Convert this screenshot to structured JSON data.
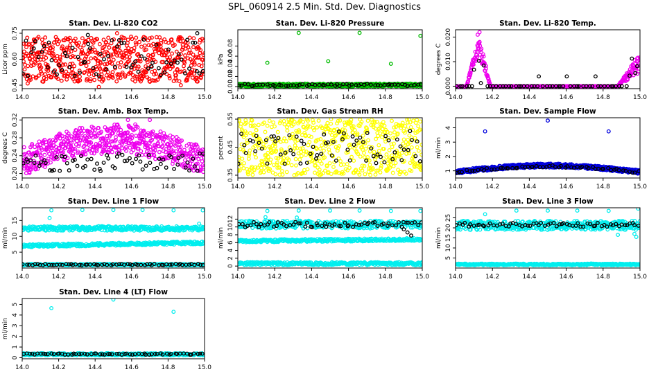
{
  "figure": {
    "title": "SPL_060914  2.5 Min. Std. Dev. Diagnostics"
  },
  "chart_data": [
    {
      "id": "co2",
      "type": "scatter",
      "title": "Stan. Dev. Li-820 CO2",
      "ylabel": "Licor ppm",
      "xlim": [
        14.0,
        15.0
      ],
      "ylim": [
        0.43,
        0.77
      ],
      "xticks": [
        "14.0",
        "14.2",
        "14.4",
        "14.6",
        "14.8",
        "15.0"
      ],
      "yticks": [
        0.45,
        0.6,
        0.75
      ],
      "ytick_labels": [
        "0.45",
        "0.60",
        "0.75"
      ],
      "series": [
        {
          "name": "run",
          "color": "#ff0000",
          "model": "uniform",
          "n": 600,
          "lo": 0.47,
          "hi": 0.73,
          "seed": 11,
          "points": [
            [
              14.03,
              0.46
            ],
            [
              14.42,
              0.44
            ],
            [
              14.87,
              0.45
            ],
            [
              14.52,
              0.75
            ]
          ]
        },
        {
          "name": "cal",
          "color": "#000000",
          "model": "uniform",
          "n": 70,
          "lo": 0.5,
          "hi": 0.72,
          "seed": 12,
          "points": [
            [
              14.36,
              0.74
            ],
            [
              14.96,
              0.75
            ]
          ]
        }
      ]
    },
    {
      "id": "pressure",
      "type": "scatter",
      "title": "Stan. Dev. Li-820 Pressure",
      "ylabel": "kPa",
      "xlim": [
        14.0,
        15.0
      ],
      "ylim": [
        -0.004,
        0.112
      ],
      "xticks": [
        "14.0",
        "14.2",
        "14.4",
        "14.6",
        "14.8",
        "15.0"
      ],
      "yticks": [
        0.0,
        0.02,
        0.04,
        0.06,
        0.08
      ],
      "ytick_labels": [
        "0.00",
        "0.02",
        "0.04",
        "0.06",
        "0.08"
      ],
      "series": [
        {
          "name": "run",
          "color": "#00bb00",
          "model": "uniform",
          "n": 550,
          "lo": 0.0,
          "hi": 0.006,
          "seed": 21,
          "points": [
            [
              14.33,
              0.106
            ],
            [
              14.66,
              0.106
            ],
            [
              14.99,
              0.1
            ],
            [
              14.16,
              0.047
            ],
            [
              14.49,
              0.05
            ],
            [
              14.83,
              0.045
            ]
          ]
        },
        {
          "name": "cal",
          "color": "#000000",
          "model": "uniform",
          "n": 60,
          "lo": 0.001,
          "hi": 0.006,
          "seed": 22,
          "points": []
        }
      ]
    },
    {
      "id": "temp",
      "type": "scatter",
      "title": "Stan. Dev. Li-820 Temp.",
      "ylabel": "degrees C",
      "xlim": [
        14.0,
        15.0
      ],
      "ylim": [
        -0.001,
        0.023
      ],
      "xticks": [
        "14.0",
        "14.2",
        "14.4",
        "14.6",
        "14.8",
        "15.0"
      ],
      "yticks": [
        0.0,
        0.01,
        0.02
      ],
      "ytick_labels": [
        "0.000",
        "0.010",
        "0.020"
      ],
      "series": [
        {
          "name": "run",
          "color": "#ee00ee",
          "model": "temp",
          "n": 600,
          "seed": 31,
          "points": [
            [
              14.13,
              0.022
            ],
            [
              14.12,
              0.021
            ]
          ]
        },
        {
          "name": "cal",
          "color": "#000000",
          "model": "tempcal",
          "n": 60,
          "seed": 32,
          "points": []
        }
      ]
    },
    {
      "id": "boxtemp",
      "type": "scatter",
      "title": "Stan. Dev. Amb. Box Temp.",
      "ylabel": "degrees C",
      "xlim": [
        14.0,
        15.0
      ],
      "ylim": [
        0.19,
        0.325
      ],
      "xticks": [
        "14.0",
        "14.2",
        "14.4",
        "14.6",
        "14.8",
        "15.0"
      ],
      "yticks": [
        0.2,
        0.24,
        0.28,
        0.32
      ],
      "ytick_labels": [
        "0.20",
        "0.24",
        "0.28",
        "0.32"
      ],
      "series": [
        {
          "name": "run",
          "color": "#ee00ee",
          "model": "hump",
          "n": 600,
          "base_lo": 0.195,
          "base_hi": 0.26,
          "peak": 0.05,
          "seed": 41,
          "points": [
            [
              14.58,
              0.32
            ],
            [
              14.7,
              0.32
            ],
            [
              14.62,
              0.31
            ]
          ]
        },
        {
          "name": "cal",
          "color": "#000000",
          "model": "uniform",
          "n": 70,
          "lo": 0.205,
          "hi": 0.245,
          "seed": 42,
          "points": []
        }
      ]
    },
    {
      "id": "rh",
      "type": "scatter",
      "title": "Stan. Dev. Gas Stream RH",
      "ylabel": "percent",
      "xlim": [
        14.0,
        15.0
      ],
      "ylim": [
        0.34,
        0.555
      ],
      "xticks": [
        "14.0",
        "14.2",
        "14.4",
        "14.6",
        "14.8",
        "15.0"
      ],
      "yticks": [
        0.35,
        0.45,
        0.55
      ],
      "ytick_labels": [
        "0.35",
        "0.45",
        "0.55"
      ],
      "series": [
        {
          "name": "run",
          "color": "#ffff00",
          "model": "uniform",
          "n": 600,
          "lo": 0.35,
          "hi": 0.55,
          "seed": 51,
          "points": []
        },
        {
          "name": "cal",
          "color": "#000000",
          "model": "uniform",
          "n": 70,
          "lo": 0.39,
          "hi": 0.52,
          "seed": 52,
          "points": []
        }
      ]
    },
    {
      "id": "sampleflow",
      "type": "scatter",
      "title": "Stan. Dev. Sample Flow",
      "ylabel": "ml/min",
      "xlim": [
        14.0,
        15.0
      ],
      "ylim": [
        0.5,
        4.7
      ],
      "xticks": [
        "14.0",
        "14.2",
        "14.4",
        "14.6",
        "14.8",
        "15.0"
      ],
      "yticks": [
        1,
        2,
        3,
        4
      ],
      "ytick_labels": [
        "1",
        "2",
        "3",
        "4"
      ],
      "series": [
        {
          "name": "run",
          "color": "#0000dd",
          "model": "hump",
          "n": 600,
          "base_lo": 0.78,
          "base_hi": 1.05,
          "peak": 0.45,
          "seed": 61,
          "points": [
            [
              14.16,
              3.75
            ],
            [
              14.5,
              4.5
            ],
            [
              14.83,
              3.75
            ],
            [
              14.03,
              1.05
            ],
            [
              14.93,
              1.1
            ]
          ]
        },
        {
          "name": "cal",
          "color": "#000000",
          "model": "hump",
          "n": 60,
          "base_lo": 0.82,
          "base_hi": 0.98,
          "peak": 0.42,
          "seed": 62,
          "points": []
        }
      ]
    },
    {
      "id": "line1",
      "type": "scatter",
      "title": "Stan. Dev. Line 1 Flow",
      "ylabel": "ml/min",
      "xlim": [
        14.0,
        15.0
      ],
      "ylim": [
        0.0,
        19.0
      ],
      "xticks": [
        "14.0",
        "14.2",
        "14.4",
        "14.6",
        "14.8",
        "15.0"
      ],
      "yticks": [
        5,
        10,
        15
      ],
      "ytick_labels": [
        "5",
        "10",
        "15"
      ],
      "series": [
        {
          "name": "upper",
          "color": "#00eeee",
          "model": "uniform",
          "n": 350,
          "lo": 11.8,
          "hi": 13.2,
          "seed": 71,
          "points": [
            [
              14.16,
              18.2
            ],
            [
              14.33,
              18.3
            ],
            [
              14.5,
              18.3
            ],
            [
              14.66,
              18.3
            ],
            [
              14.83,
              18.2
            ],
            [
              14.99,
              18.2
            ],
            [
              14.15,
              15.8
            ],
            [
              14.97,
              14.0
            ]
          ]
        },
        {
          "name": "middle",
          "color": "#00eeee",
          "model": "linear",
          "n": 350,
          "a": 7.0,
          "b": 8.0,
          "jit": 0.9,
          "seed": 72,
          "points": []
        },
        {
          "name": "lower",
          "color": "#00eeee",
          "model": "uniform",
          "n": 300,
          "lo": 0.8,
          "hi": 1.3,
          "seed": 73,
          "points": []
        },
        {
          "name": "cal",
          "color": "#000000",
          "model": "uniform",
          "n": 65,
          "lo": 0.85,
          "hi": 1.3,
          "seed": 74,
          "points": []
        }
      ]
    },
    {
      "id": "line2",
      "type": "scatter",
      "title": "Stan. Dev. Line 2 Flow",
      "ylabel": "ml/min",
      "xlim": [
        14.0,
        15.0
      ],
      "ylim": [
        -0.5,
        14.9
      ],
      "xticks": [
        "14.0",
        "14.2",
        "14.4",
        "14.6",
        "14.8",
        "15.0"
      ],
      "yticks": [
        0,
        2,
        4,
        6,
        8,
        10,
        12
      ],
      "ytick_labels": [
        "0",
        "2",
        "4",
        "6",
        "8",
        "10",
        "12"
      ],
      "series": [
        {
          "name": "upper",
          "color": "#00eeee",
          "model": "uniform",
          "n": 330,
          "lo": 9.6,
          "hi": 11.6,
          "seed": 81,
          "points": [
            [
              14.16,
              14.1
            ],
            [
              14.33,
              14.2
            ],
            [
              14.5,
              14.2
            ],
            [
              14.66,
              14.2
            ],
            [
              14.83,
              14.1
            ],
            [
              14.99,
              14.1
            ],
            [
              14.15,
              12.5
            ],
            [
              14.32,
              12.4
            ]
          ]
        },
        {
          "name": "middle",
          "color": "#00eeee",
          "model": "linear",
          "n": 330,
          "a": 6.4,
          "b": 6.8,
          "jit": 0.7,
          "seed": 82,
          "points": []
        },
        {
          "name": "lower",
          "color": "#00eeee",
          "model": "uniform",
          "n": 330,
          "lo": 0.25,
          "hi": 1.0,
          "seed": 83,
          "points": []
        },
        {
          "name": "cal",
          "color": "#000000",
          "model": "uniform",
          "n": 65,
          "lo": 9.9,
          "hi": 11.3,
          "seed": 84,
          "points": [
            [
              14.92,
              8.6
            ],
            [
              14.94,
              7.8
            ],
            [
              14.9,
              9.4
            ]
          ]
        }
      ]
    },
    {
      "id": "line3",
      "type": "scatter",
      "title": "Stan. Dev. Line 3 Flow",
      "ylabel": "ml/min",
      "xlim": [
        14.0,
        15.0
      ],
      "ylim": [
        0.0,
        30.0
      ],
      "xticks": [
        "14.0",
        "14.2",
        "14.4",
        "14.6",
        "14.8",
        "15.0"
      ],
      "yticks": [
        5,
        10,
        15,
        20,
        25
      ],
      "ytick_labels": [
        "5",
        "10",
        "15",
        "20",
        "25"
      ],
      "series": [
        {
          "name": "upper",
          "color": "#00eeee",
          "model": "uniform",
          "n": 400,
          "lo": 19.0,
          "hi": 23.5,
          "seed": 91,
          "points": [
            [
              14.16,
              26.8
            ],
            [
              14.33,
              28.6
            ],
            [
              14.5,
              28.6
            ],
            [
              14.66,
              28.6
            ],
            [
              14.83,
              28.5
            ],
            [
              14.99,
              29.6
            ],
            [
              14.98,
              15.5
            ],
            [
              14.97,
              17.0
            ],
            [
              14.88,
              16.5
            ]
          ]
        },
        {
          "name": "lower",
          "color": "#00eeee",
          "model": "uniform",
          "n": 400,
          "lo": 1.4,
          "hi": 2.2,
          "seed": 92,
          "points": []
        },
        {
          "name": "cal",
          "color": "#000000",
          "model": "uniform",
          "n": 65,
          "lo": 20.5,
          "hi": 22.5,
          "seed": 93,
          "points": []
        }
      ]
    },
    {
      "id": "line4",
      "type": "scatter",
      "title": "Stan. Dev. Line 4 (LT) Flow",
      "ylabel": "ml/min",
      "xlim": [
        14.0,
        15.0
      ],
      "ylim": [
        -0.1,
        5.55
      ],
      "xticks": [
        "14.0",
        "14.2",
        "14.4",
        "14.6",
        "14.8",
        "15.0"
      ],
      "yticks": [
        0,
        1,
        2,
        3,
        4,
        5
      ],
      "ytick_labels": [
        "0",
        "1",
        "2",
        "3",
        "4",
        "5"
      ],
      "series": [
        {
          "name": "run",
          "color": "#00eeee",
          "model": "uniform",
          "n": 450,
          "lo": 0.22,
          "hi": 0.42,
          "seed": 101,
          "points": [
            [
              14.16,
              4.65
            ],
            [
              14.5,
              5.45
            ],
            [
              14.83,
              4.3
            ]
          ]
        },
        {
          "name": "cal",
          "color": "#000000",
          "model": "uniform",
          "n": 65,
          "lo": 0.28,
          "hi": 0.4,
          "seed": 102,
          "points": []
        }
      ]
    }
  ]
}
